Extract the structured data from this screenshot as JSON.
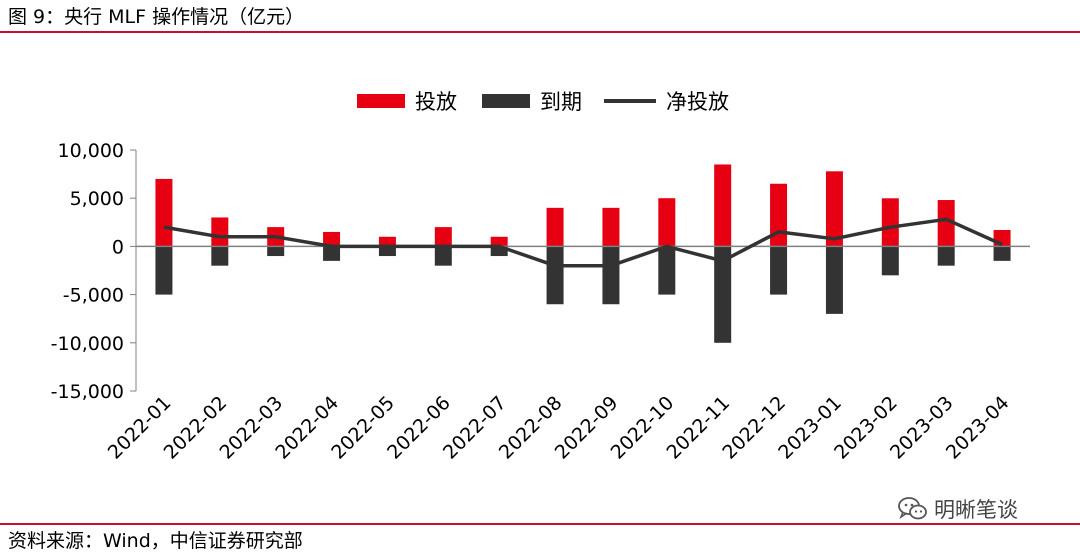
{
  "figure": {
    "title": "图 9：央行 MLF 操作情况（亿元）",
    "source": "资料来源：Wind，中信证券研究部",
    "watermark": "明晰笔谈",
    "watermark_icon": "wechat-logo-icon"
  },
  "chart_data": {
    "type": "bar",
    "categories": [
      "2022-01",
      "2022-02",
      "2022-03",
      "2022-04",
      "2022-05",
      "2022-06",
      "2022-07",
      "2022-08",
      "2022-09",
      "2022-10",
      "2022-11",
      "2022-12",
      "2023-01",
      "2023-02",
      "2023-03",
      "2023-04"
    ],
    "series": [
      {
        "name": "投放",
        "type": "bar",
        "color": "#e60012",
        "values": [
          7000,
          3000,
          2000,
          1500,
          1000,
          2000,
          1000,
          4000,
          4000,
          5000,
          8500,
          6500,
          7790,
          4990,
          4810,
          1700
        ]
      },
      {
        "name": "到期",
        "type": "bar",
        "color": "#333333",
        "values": [
          -5000,
          -2000,
          -1000,
          -1500,
          -1000,
          -2000,
          -1000,
          -6000,
          -6000,
          -5000,
          -10000,
          -5000,
          -7000,
          -3000,
          -2000,
          -1500
        ]
      },
      {
        "name": "净投放",
        "type": "line",
        "color": "#333333",
        "values": [
          2000,
          1000,
          1000,
          0,
          0,
          0,
          0,
          -2000,
          -2000,
          0,
          -1500,
          1500,
          790,
          1990,
          2810,
          200
        ]
      }
    ],
    "ylim": [
      -15000,
      10000
    ],
    "yticks": [
      10000,
      5000,
      0,
      -5000,
      -10000,
      -15000
    ],
    "ytick_labels": [
      "10,000",
      "5,000",
      "0",
      "-5,000",
      "-10,000",
      "-15,000"
    ],
    "legend_position": "top-center",
    "grid": false,
    "xlabel": "",
    "ylabel": ""
  }
}
